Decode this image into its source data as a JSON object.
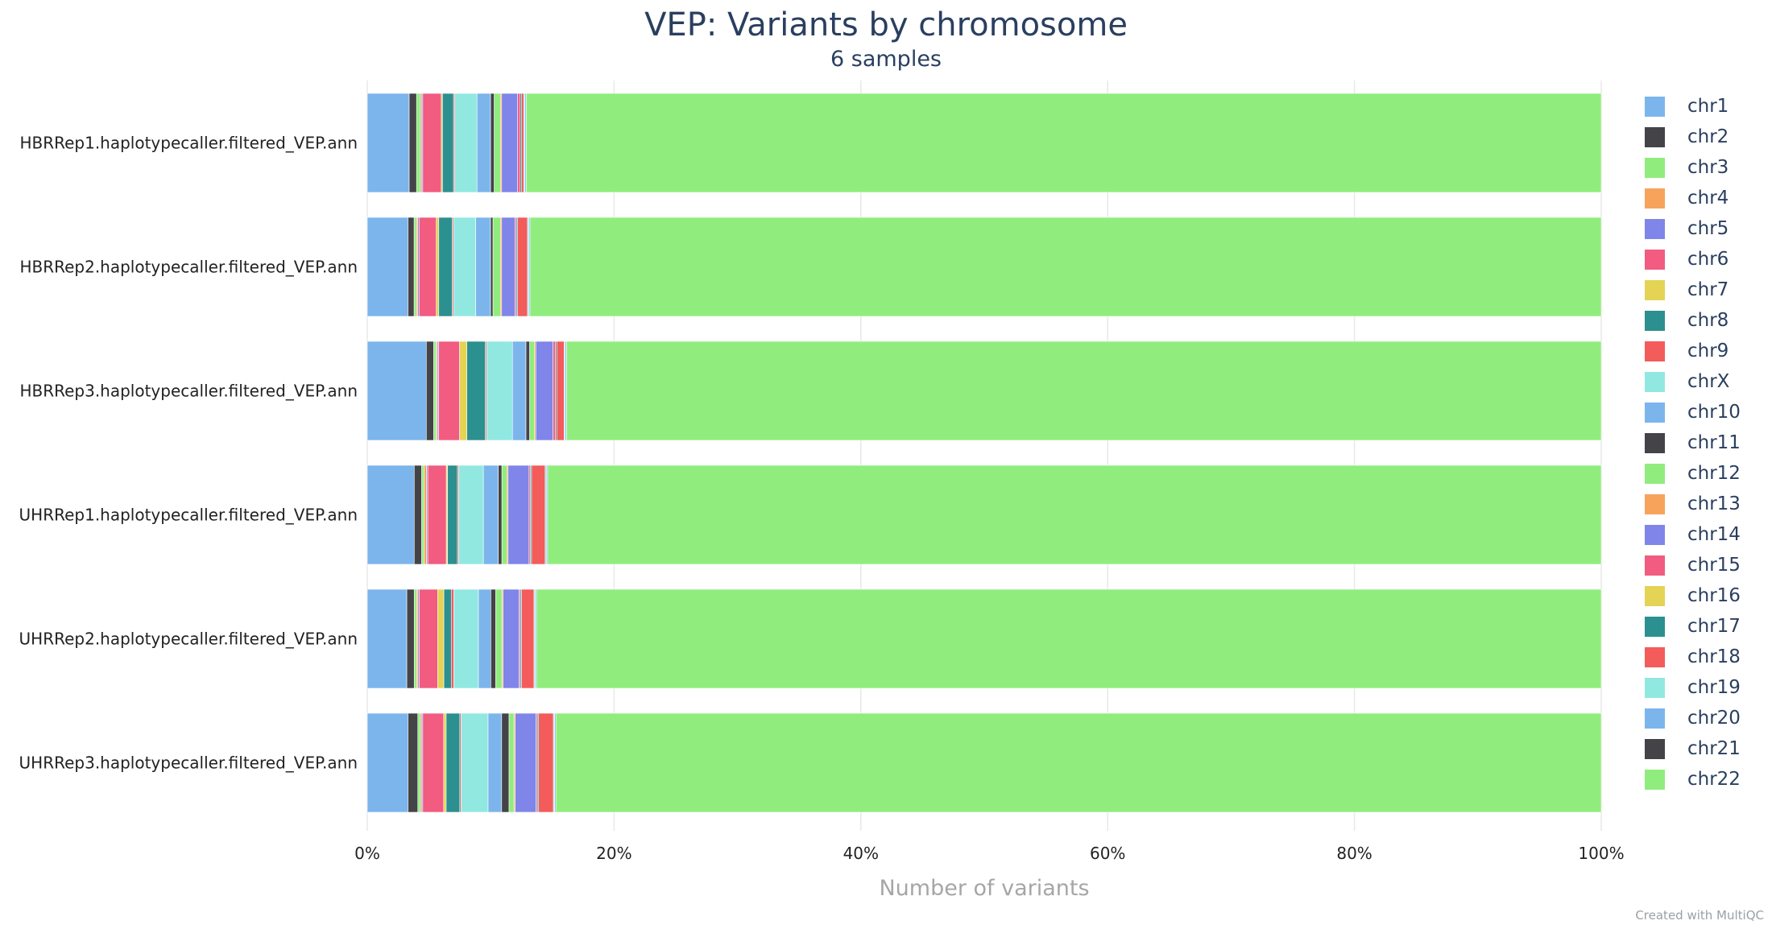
{
  "chart_data": {
    "type": "bar",
    "orientation": "horizontal",
    "stacked": "percent",
    "title": "VEP: Variants by chromosome",
    "subtitle": "6 samples",
    "xlabel": "Number of variants",
    "xlim": [
      0,
      100
    ],
    "xticks": [
      "0%",
      "20%",
      "40%",
      "60%",
      "80%",
      "100%"
    ],
    "grid": true,
    "legend_position": "right",
    "categories": [
      "HBRRep1.haplotypecaller.filtered_VEP.ann",
      "HBRRep2.haplotypecaller.filtered_VEP.ann",
      "HBRRep3.haplotypecaller.filtered_VEP.ann",
      "UHRRep1.haplotypecaller.filtered_VEP.ann",
      "UHRRep2.haplotypecaller.filtered_VEP.ann",
      "UHRRep3.haplotypecaller.filtered_VEP.ann"
    ],
    "series": [
      {
        "name": "chr1",
        "color": "#7cb5ec",
        "values": [
          3.4,
          3.3,
          4.8,
          3.8,
          3.2,
          3.3
        ]
      },
      {
        "name": "chr2",
        "color": "#434348",
        "values": [
          0.6,
          0.5,
          0.6,
          0.6,
          0.6,
          0.8
        ]
      },
      {
        "name": "chr3",
        "color": "#90ed7d",
        "values": [
          0.3,
          0.2,
          0.2,
          0.2,
          0.2,
          0.2
        ]
      },
      {
        "name": "chr4",
        "color": "#f7a35c",
        "values": [
          0.1,
          0.1,
          0.1,
          0.2,
          0.1,
          0.1
        ]
      },
      {
        "name": "chr5",
        "color": "#8085e9",
        "values": [
          0.1,
          0.1,
          0.1,
          0.1,
          0.1,
          0.1
        ]
      },
      {
        "name": "chr6",
        "color": "#f15c80",
        "values": [
          1.5,
          1.4,
          1.7,
          1.5,
          1.5,
          1.7
        ]
      },
      {
        "name": "chr7",
        "color": "#e4d354",
        "values": [
          0.1,
          0.2,
          0.6,
          0.1,
          0.5,
          0.2
        ]
      },
      {
        "name": "chr8",
        "color": "#2b908f",
        "values": [
          0.9,
          1.1,
          1.5,
          0.8,
          0.6,
          1.1
        ]
      },
      {
        "name": "chr9",
        "color": "#f45b5b",
        "values": [
          0.1,
          0.1,
          0.1,
          0.1,
          0.2,
          0.1
        ]
      },
      {
        "name": "chrX",
        "color": "#91e8e1",
        "values": [
          1.8,
          1.8,
          2.1,
          2.0,
          2.0,
          2.2
        ]
      },
      {
        "name": "chr10",
        "color": "#7cb5ec",
        "values": [
          1.1,
          1.2,
          1.1,
          1.2,
          1.0,
          1.1
        ]
      },
      {
        "name": "chr11",
        "color": "#434348",
        "values": [
          0.3,
          0.2,
          0.3,
          0.3,
          0.4,
          0.6
        ]
      },
      {
        "name": "chr12",
        "color": "#90ed7d",
        "values": [
          0.5,
          0.6,
          0.4,
          0.4,
          0.5,
          0.4
        ]
      },
      {
        "name": "chr13",
        "color": "#f7a35c",
        "values": [
          0.1,
          0.1,
          0.1,
          0.1,
          0.1,
          0.1
        ]
      },
      {
        "name": "chr14",
        "color": "#8085e9",
        "values": [
          1.3,
          1.1,
          1.4,
          1.7,
          1.3,
          1.7
        ]
      },
      {
        "name": "chr15",
        "color": "#f15c80",
        "values": [
          0.2,
          0.1,
          0.2,
          0.1,
          0.1,
          0.1
        ]
      },
      {
        "name": "chr16",
        "color": "#e4d354",
        "values": [
          0.0,
          0.0,
          0.0,
          0.0,
          0.0,
          0.0
        ]
      },
      {
        "name": "chr17",
        "color": "#2b908f",
        "values": [
          0.1,
          0.1,
          0.1,
          0.1,
          0.1,
          0.1
        ]
      },
      {
        "name": "chr18",
        "color": "#f45b5b",
        "values": [
          0.2,
          0.8,
          0.6,
          1.1,
          1.0,
          1.2
        ]
      },
      {
        "name": "chr19",
        "color": "#91e8e1",
        "values": [
          0.1,
          0.1,
          0.1,
          0.1,
          0.1,
          0.1
        ]
      },
      {
        "name": "chr20",
        "color": "#7cb5ec",
        "values": [
          0.1,
          0.1,
          0.1,
          0.1,
          0.1,
          0.1
        ]
      },
      {
        "name": "chr21",
        "color": "#434348",
        "values": [
          0.0,
          0.0,
          0.0,
          0.0,
          0.0,
          0.0
        ]
      },
      {
        "name": "chr22",
        "color": "#90ed7d",
        "values": [
          87.2,
          86.9,
          84.1,
          85.3,
          86.2,
          84.8
        ]
      }
    ]
  },
  "footer": {
    "credit": "Created with MultiQC"
  }
}
